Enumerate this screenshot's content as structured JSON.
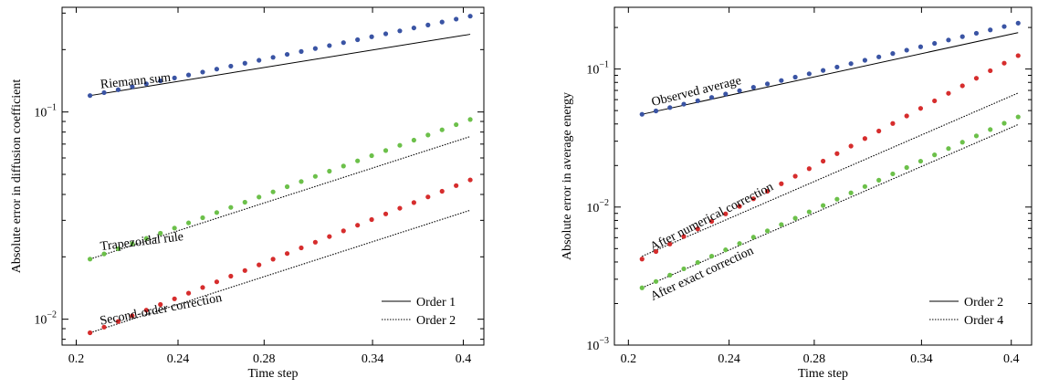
{
  "chart_data": [
    {
      "type": "scatter",
      "xlabel": "Time step",
      "ylabel": "Absolute error in diffusion coefficient",
      "xscale": "log",
      "yscale": "log",
      "xlim": [
        0.195,
        0.415
      ],
      "ylim": [
        0.0075,
        0.32
      ],
      "xticks": [
        {
          "value": 0.2,
          "label": "0.2"
        },
        {
          "value": 0.24,
          "label": "0.24"
        },
        {
          "value": 0.28,
          "label": "0.28"
        },
        {
          "value": 0.34,
          "label": "0.34"
        },
        {
          "value": 0.4,
          "label": "0.4"
        }
      ],
      "yticks": [
        {
          "value": 0.01,
          "base": "10",
          "exp": "−2"
        },
        {
          "value": 0.1,
          "base": "10",
          "exp": "−1"
        }
      ],
      "series": [
        {
          "name": "Riemann sum",
          "color": "#3a54a4",
          "x0": 0.205,
          "x1": 0.405,
          "y0": 0.12,
          "y1": 0.29,
          "n": 28
        },
        {
          "name": "Trapezoidal rule",
          "color": "#6cc04a",
          "x0": 0.205,
          "x1": 0.405,
          "y0": 0.0195,
          "y1": 0.092,
          "n": 28
        },
        {
          "name": "Second-order correction",
          "color": "#d62d2d",
          "x0": 0.205,
          "x1": 0.405,
          "y0": 0.0086,
          "y1": 0.047,
          "n": 28
        }
      ],
      "reference_lines": [
        {
          "style": "solid",
          "order": 1,
          "x0": 0.205,
          "y0": 0.12
        },
        {
          "style": "dotted",
          "order": 2,
          "x0": 0.205,
          "y0": 0.0195
        },
        {
          "style": "dotted",
          "order": 2,
          "x0": 0.205,
          "y0": 0.0086
        }
      ],
      "annotations": [
        {
          "text": "Riemann sum",
          "x": 0.209,
          "y": 0.13,
          "angle": -6
        },
        {
          "text": "Trapezoidal rule",
          "x": 0.209,
          "y": 0.0215,
          "angle": -7
        },
        {
          "text": "Second-order correction",
          "x": 0.209,
          "y": 0.0094,
          "angle": -11
        }
      ],
      "legend": {
        "position": "bottom-right",
        "entries": [
          {
            "label": "Order 1",
            "style": "solid"
          },
          {
            "label": "Order 2",
            "style": "dotted"
          }
        ]
      },
      "grid": false
    },
    {
      "type": "scatter",
      "xlabel": "Time step",
      "ylabel": "Absolute error in average energy",
      "xscale": "log",
      "yscale": "log",
      "xlim": [
        0.195,
        0.415
      ],
      "ylim": [
        0.001,
        0.28
      ],
      "xticks": [
        {
          "value": 0.2,
          "label": "0.2"
        },
        {
          "value": 0.24,
          "label": "0.24"
        },
        {
          "value": 0.28,
          "label": "0.28"
        },
        {
          "value": 0.34,
          "label": "0.34"
        },
        {
          "value": 0.4,
          "label": "0.4"
        }
      ],
      "yticks": [
        {
          "value": 0.001,
          "base": "10",
          "exp": "−3"
        },
        {
          "value": 0.01,
          "base": "10",
          "exp": "−2"
        },
        {
          "value": 0.1,
          "base": "10",
          "exp": "−1"
        }
      ],
      "series": [
        {
          "name": "Observed average",
          "color": "#3a54a4",
          "x0": 0.205,
          "x1": 0.405,
          "y0": 0.047,
          "y1": 0.215,
          "n": 28
        },
        {
          "name": "After numerical correction",
          "color": "#d62d2d",
          "x0": 0.205,
          "x1": 0.405,
          "y0": 0.0042,
          "y1": 0.125,
          "n": 28
        },
        {
          "name": "After exact correction",
          "color": "#6cc04a",
          "x0": 0.205,
          "x1": 0.405,
          "y0": 0.0026,
          "y1": 0.045,
          "n": 28
        }
      ],
      "reference_lines": [
        {
          "style": "solid",
          "order": 2,
          "x0": 0.205,
          "y0": 0.047
        },
        {
          "style": "dotted",
          "order": 4,
          "x0": 0.205,
          "y0": 0.0044
        },
        {
          "style": "dotted",
          "order": 4,
          "x0": 0.205,
          "y0": 0.0026
        }
      ],
      "annotations": [
        {
          "text": "Observed average",
          "x": 0.209,
          "y": 0.054,
          "angle": -14
        },
        {
          "text": "After numerical correction",
          "x": 0.209,
          "y": 0.0048,
          "angle": -27
        },
        {
          "text": "After exact correction",
          "x": 0.209,
          "y": 0.0021,
          "angle": -25
        }
      ],
      "legend": {
        "position": "bottom-right",
        "entries": [
          {
            "label": "Order 2",
            "style": "solid"
          },
          {
            "label": "Order 4",
            "style": "dotted"
          }
        ]
      },
      "grid": false
    }
  ]
}
